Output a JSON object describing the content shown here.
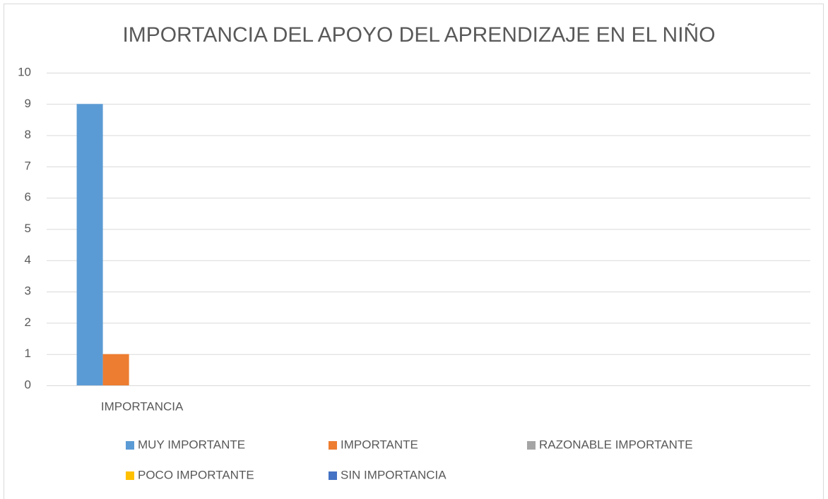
{
  "chart_data": {
    "type": "bar",
    "title": "IMPORTANCIA DEL APOYO DEL APRENDIZAJE EN EL NIÑO",
    "categories": [
      "IMPORTANCIA",
      null,
      null,
      null
    ],
    "series": [
      {
        "name": "MUY IMPORTANTE",
        "color": "#5b9bd5",
        "values": [
          9,
          null,
          null,
          null
        ]
      },
      {
        "name": "IMPORTANTE",
        "color": "#ed7d31",
        "values": [
          1,
          null,
          null,
          null
        ]
      },
      {
        "name": "RAZONABLE IMPORTANTE",
        "color": "#a5a5a5",
        "values": [
          0,
          null,
          null,
          null
        ]
      },
      {
        "name": "POCO IMPORTANTE",
        "color": "#ffc000",
        "values": [
          0,
          null,
          null,
          null
        ]
      },
      {
        "name": "SIN IMPORTANCIA",
        "color": "#4472c4",
        "values": [
          0,
          null,
          null,
          null
        ]
      }
    ],
    "ylim": [
      0,
      10
    ],
    "yticks": [
      0,
      1,
      2,
      3,
      4,
      5,
      6,
      7,
      8,
      9,
      10
    ],
    "grid": true,
    "legend": "bottom"
  }
}
